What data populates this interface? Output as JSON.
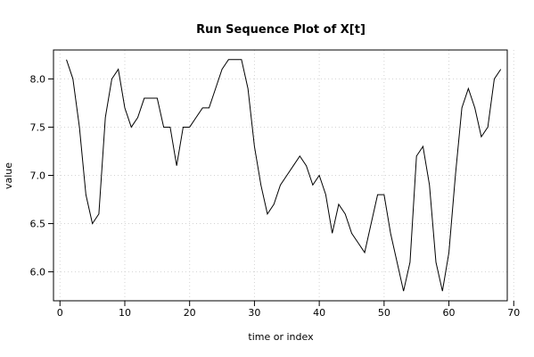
{
  "chart_data": {
    "type": "line",
    "title": "Run Sequence Plot of X[t]",
    "xlabel": "time or index",
    "ylabel": "value",
    "xlim": [
      -1,
      69
    ],
    "ylim": [
      5.7,
      8.3
    ],
    "xticks": [
      0,
      10,
      20,
      30,
      40,
      50,
      60,
      70
    ],
    "yticks": [
      6.0,
      6.5,
      7.0,
      7.5,
      8.0
    ],
    "xtick_labels": [
      "0",
      "10",
      "20",
      "30",
      "40",
      "50",
      "60",
      "70"
    ],
    "ytick_labels": [
      "6.0",
      "6.5",
      "7.0",
      "7.5",
      "8.0"
    ],
    "grid": true,
    "series": [
      {
        "x": [
          1,
          2,
          3,
          4,
          5,
          6,
          7,
          8,
          9,
          10,
          11,
          12,
          13,
          14,
          15,
          16,
          17,
          18,
          19,
          20,
          21,
          22,
          23,
          24,
          25,
          26,
          27,
          28,
          29,
          30,
          31,
          32,
          33,
          34,
          35,
          36,
          37,
          38,
          39,
          40,
          41,
          42,
          43,
          44,
          45,
          46,
          47,
          48,
          49,
          50,
          51,
          52,
          53,
          54,
          55,
          56,
          57,
          58,
          59,
          60,
          61,
          62,
          63,
          64,
          65,
          66,
          67,
          68
        ],
        "values": [
          8.2,
          8.0,
          7.5,
          6.8,
          6.5,
          6.6,
          7.6,
          8.0,
          8.1,
          7.7,
          7.5,
          7.6,
          7.8,
          7.8,
          7.8,
          7.5,
          7.5,
          7.1,
          7.5,
          7.5,
          7.6,
          7.7,
          7.7,
          7.9,
          8.1,
          8.2,
          8.2,
          8.2,
          7.9,
          7.3,
          6.9,
          6.6,
          6.7,
          6.9,
          7.0,
          7.1,
          7.2,
          7.1,
          6.9,
          7.0,
          6.8,
          6.4,
          6.7,
          6.6,
          6.4,
          6.3,
          6.2,
          6.5,
          6.8,
          6.8,
          6.4,
          6.1,
          5.8,
          6.1,
          7.2,
          7.3,
          6.9,
          6.1,
          5.8,
          6.2,
          7.0,
          7.7,
          7.9,
          7.7,
          7.4,
          7.5,
          8.0,
          8.1
        ]
      }
    ]
  }
}
